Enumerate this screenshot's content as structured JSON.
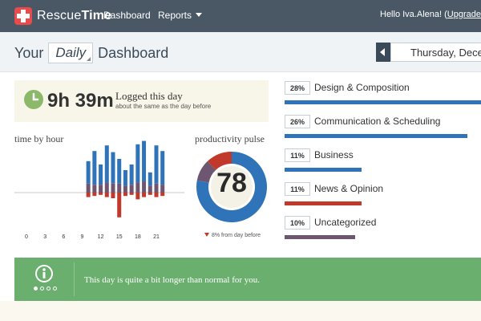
{
  "nav": {
    "logo_a": "Rescue",
    "logo_b": "Time",
    "links": [
      "Dashboard",
      "Reports"
    ],
    "hello": "Hello Iva.Alena! (",
    "upgrade": "Upgrade to P"
  },
  "title": {
    "prefix": "Your",
    "period": "Daily",
    "suffix": "Dashboard",
    "date": "Thursday, Decem"
  },
  "logged": {
    "time": "9h 39m",
    "label": "Logged this day",
    "sub": "about the same as the day before"
  },
  "time_by_hour_label": "time by hour",
  "pulse": {
    "label": "productivity pulse",
    "value": "78",
    "note": "8% from day before"
  },
  "chart_data": [
    {
      "type": "bar",
      "xlabel": "",
      "ylabel": "",
      "x_ticks": [
        "0",
        "3",
        "6",
        "9",
        "12",
        "15",
        "18",
        "21"
      ],
      "hours": [
        10,
        11,
        12,
        13,
        14,
        15,
        16,
        17,
        18,
        19,
        20,
        21,
        22
      ],
      "series": [
        {
          "color": "#2f73b8",
          "values": [
            20,
            30,
            18,
            33,
            28,
            22,
            14,
            18,
            34,
            36,
            12,
            34,
            30
          ]
        },
        {
          "color": "#6e5570",
          "values": [
            8,
            7,
            7,
            9,
            8,
            8,
            6,
            7,
            9,
            10,
            6,
            8,
            7
          ]
        },
        {
          "color": "#c0392b",
          "values": [
            -4,
            -3,
            -2,
            -4,
            -5,
            -22,
            -3,
            -2,
            -6,
            -4,
            -2,
            -4,
            -3
          ]
        }
      ]
    },
    {
      "type": "pie",
      "values": [
        78,
        10,
        12
      ],
      "colors": [
        "#2f73b8",
        "#6e5570",
        "#c0392b"
      ]
    }
  ],
  "categories": [
    {
      "pct": "28%",
      "label": "Design & Composition",
      "color": "#2f73b8",
      "value": 28
    },
    {
      "pct": "26%",
      "label": "Communication & Scheduling",
      "color": "#2f73b8",
      "value": 26
    },
    {
      "pct": "11%",
      "label": "Business",
      "color": "#2f73b8",
      "value": 11
    },
    {
      "pct": "11%",
      "label": "News & Opinion",
      "color": "#c0392b",
      "value": 11
    },
    {
      "pct": "10%",
      "label": "Uncategorized",
      "color": "#6e5570",
      "value": 10
    }
  ],
  "banner": {
    "text": "This day is quite a bit longer than normal for you."
  }
}
